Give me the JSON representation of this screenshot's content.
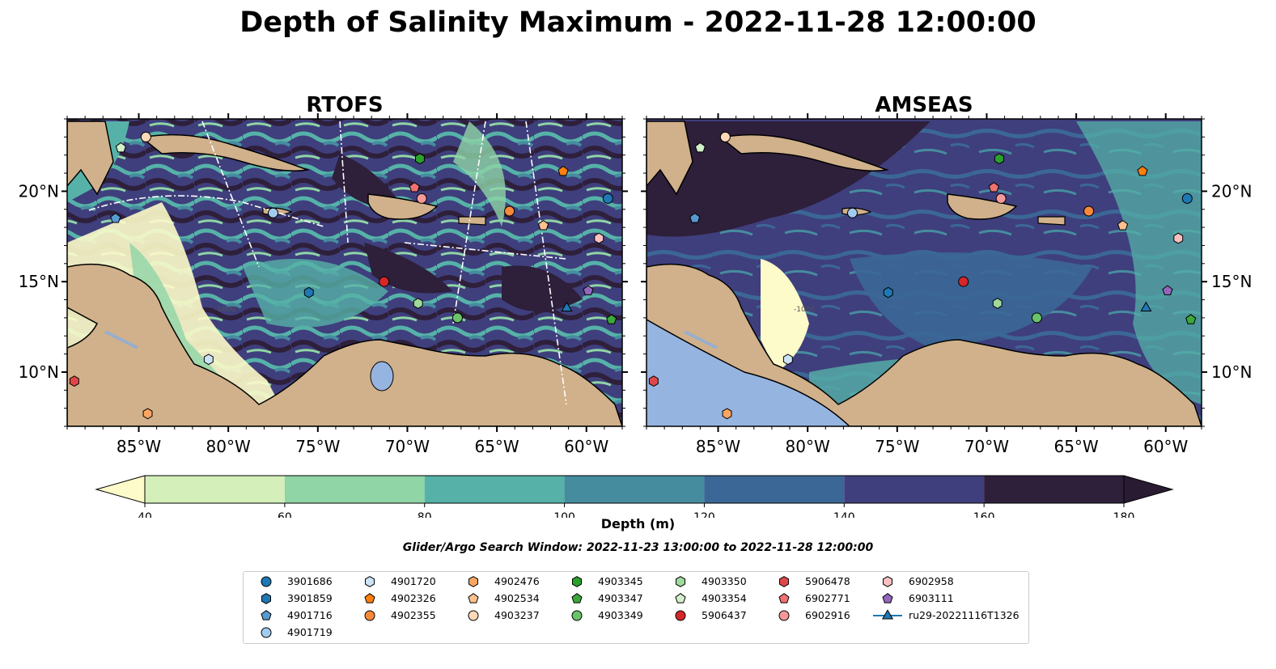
{
  "figure": {
    "title": "Depth of Salinity Maximum - 2022-11-28 12:00:00",
    "subtitle": "Glider/Argo Search Window: 2022-11-23 13:00:00 to 2022-11-28 12:00:00"
  },
  "chart_data": [
    {
      "type": "heatmap",
      "title": "RTOFS",
      "xlim": [
        -89,
        -58
      ],
      "ylim": [
        7,
        24
      ],
      "xticks": [
        "85°W",
        "80°W",
        "75°W",
        "70°W",
        "65°W",
        "60°W"
      ],
      "yticks": [
        "10°N",
        "15°N",
        "20°N"
      ]
    },
    {
      "type": "heatmap",
      "title": "AMSEAS",
      "xlim": [
        -89,
        -58
      ],
      "ylim": [
        7,
        24
      ],
      "xticks": [
        "85°W",
        "80°W",
        "75°W",
        "70°W",
        "65°W",
        "60°W"
      ],
      "yticks": [
        "10°N",
        "15°N",
        "20°N"
      ]
    }
  ],
  "colorbar": {
    "label": "Depth (m)",
    "ticks": [
      "40",
      "60",
      "80",
      "100",
      "120",
      "140",
      "160",
      "180"
    ],
    "bins": [
      40,
      60,
      80,
      100,
      120,
      140,
      160,
      180
    ],
    "colors": {
      "under": "#fdfbc9",
      "b40": "#d4efba",
      "b60": "#8fd5a6",
      "b80": "#56b2a8",
      "b100": "#468c9f",
      "b120": "#3b6796",
      "b140": "#3f3f7d",
      "b160": "#2e1f3b",
      "over": "#281b32"
    }
  },
  "map_colors": {
    "land": "#d0b18b",
    "ocean_pacific": "#96b4e0",
    "river": "#98aecc",
    "coast": "#000000"
  },
  "contour_label": "-1000",
  "floats": [
    {
      "id": "3901686",
      "marker": "circle",
      "color": "#1f77b4",
      "lon": -58.8,
      "lat": 19.6
    },
    {
      "id": "3901859",
      "marker": "hexagon",
      "color": "#1f77b4",
      "lon": -75.5,
      "lat": 14.4
    },
    {
      "id": "4901716",
      "marker": "pentagon",
      "color": "#5799d0",
      "lon": -86.3,
      "lat": 18.5
    },
    {
      "id": "4901719",
      "marker": "circle",
      "color": "#a3cbef",
      "lon": -77.5,
      "lat": 18.8
    },
    {
      "id": "4901720",
      "marker": "hexagon",
      "color": "#cce3f6",
      "lon": -81.1,
      "lat": 10.7
    },
    {
      "id": "4902326",
      "marker": "pentagon",
      "color": "#ff7f0e",
      "lon": -61.3,
      "lat": 21.1
    },
    {
      "id": "4902355",
      "marker": "circle",
      "color": "#f9893a",
      "lon": -64.3,
      "lat": 18.9
    },
    {
      "id": "4902476",
      "marker": "hexagon",
      "color": "#fca561",
      "lon": -84.5,
      "lat": 7.7
    },
    {
      "id": "4902534",
      "marker": "pentagon",
      "color": "#fdc18f",
      "lon": -62.4,
      "lat": 18.1
    },
    {
      "id": "4903237",
      "marker": "circle",
      "color": "#fdd9b8",
      "lon": -84.6,
      "lat": 23.0
    },
    {
      "id": "4903345",
      "marker": "hexagon",
      "color": "#2ca02c",
      "lon": -69.3,
      "lat": 21.8
    },
    {
      "id": "4903347",
      "marker": "pentagon",
      "color": "#3aa83a",
      "lon": -58.6,
      "lat": 12.9
    },
    {
      "id": "4903349",
      "marker": "circle",
      "color": "#6ac46a",
      "lon": -67.2,
      "lat": 13.0
    },
    {
      "id": "4903350",
      "marker": "hexagon",
      "color": "#9fd99b",
      "lon": -69.4,
      "lat": 13.8
    },
    {
      "id": "4903354",
      "marker": "pentagon",
      "color": "#d2f0cb",
      "lon": -86.0,
      "lat": 22.4
    },
    {
      "id": "5906437",
      "marker": "circle",
      "color": "#d62728",
      "lon": -71.3,
      "lat": 15.0
    },
    {
      "id": "5906478",
      "marker": "hexagon",
      "color": "#e0474a",
      "lon": -88.6,
      "lat": 9.5
    },
    {
      "id": "6902771",
      "marker": "pentagon",
      "color": "#f07174",
      "lon": -69.6,
      "lat": 20.2
    },
    {
      "id": "6902916",
      "marker": "circle",
      "color": "#f59899",
      "lon": -69.2,
      "lat": 19.6
    },
    {
      "id": "6902958",
      "marker": "hexagon",
      "color": "#f9c0c0",
      "lon": -59.3,
      "lat": 17.4
    },
    {
      "id": "6903111",
      "marker": "pentagon",
      "color": "#9467bd",
      "lon": -59.9,
      "lat": 14.5
    },
    {
      "id": "ru29-20221116T1326",
      "marker": "triangle",
      "color": "#1f77b4",
      "lon": -61.1,
      "lat": 13.6
    }
  ]
}
